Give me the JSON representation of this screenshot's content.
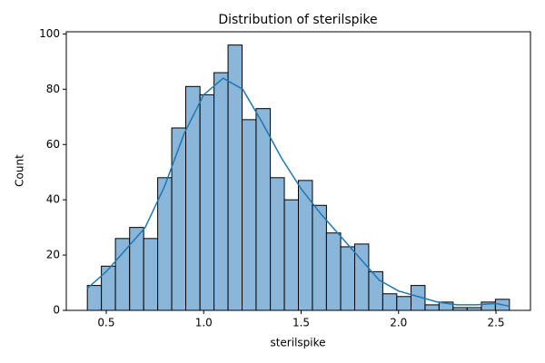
{
  "chart_data": {
    "type": "histogram",
    "title": "Distribution of sterilspike",
    "xlabel": "sterilspike",
    "ylabel": "Count",
    "bins": [
      0.403,
      0.475,
      0.547,
      0.62,
      0.692,
      0.764,
      0.836,
      0.908,
      0.981,
      1.053,
      1.125,
      1.197,
      1.269,
      1.342,
      1.414,
      1.486,
      1.558,
      1.63,
      1.703,
      1.775,
      1.847,
      1.919,
      1.991,
      2.064,
      2.136,
      2.208,
      2.28,
      2.352,
      2.425,
      2.497,
      2.569
    ],
    "values": [
      9,
      16,
      26,
      30,
      26,
      48,
      66,
      81,
      78,
      86,
      96,
      69,
      73,
      48,
      40,
      47,
      38,
      28,
      23,
      24,
      14,
      6,
      5,
      9,
      2,
      3,
      1,
      1,
      3,
      4
    ],
    "color": "#8ab6d9",
    "edgecolor": "#000000",
    "kde": {
      "x": [
        0.403,
        0.5,
        0.6,
        0.7,
        0.8,
        0.9,
        1.0,
        1.1,
        1.2,
        1.3,
        1.4,
        1.5,
        1.6,
        1.7,
        1.8,
        1.9,
        2.0,
        2.1,
        2.2,
        2.3,
        2.4,
        2.5,
        2.569
      ],
      "values": [
        8,
        14,
        22,
        30,
        45,
        64,
        78,
        84,
        80,
        68,
        55,
        44,
        35,
        27,
        19,
        11,
        7,
        5,
        3,
        2,
        2,
        2.5,
        1.5
      ],
      "color": "#1f77b4"
    },
    "xlim": [
      0.295,
      2.677
    ],
    "ylim": [
      0,
      100.8
    ],
    "xticks": [
      0.5,
      {
        "value": 1.0,
        "label": "1.0"
      },
      1.5,
      {
        "value": 2.0,
        "label": "2.0"
      },
      2.5
    ],
    "yticks": [
      0,
      20,
      40,
      60,
      80,
      100
    ],
    "grid": false
  }
}
